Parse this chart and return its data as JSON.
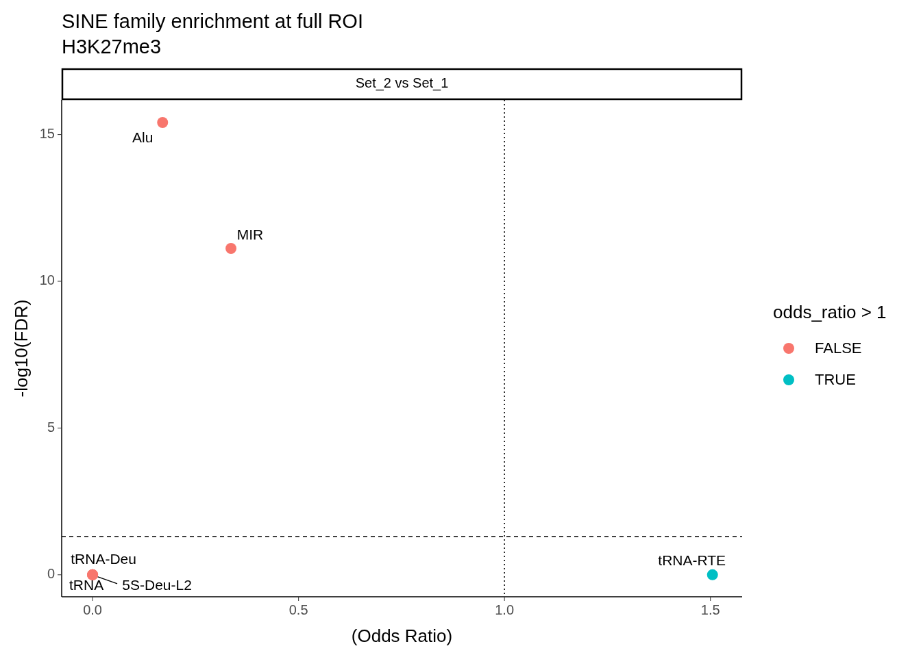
{
  "chart_data": {
    "type": "scatter",
    "title": "SINE family enrichment at full ROI",
    "subtitle": "H3K27me3",
    "xlabel": "(Odds Ratio)",
    "ylabel": "-log10(FDR)",
    "legend_title": "odds_ratio > 1",
    "series": [
      {
        "name": "FALSE",
        "color": "#f8766d",
        "x": [
          0.17,
          0.336,
          0,
          0,
          0
        ],
        "values": [
          15.41,
          11.12,
          0,
          0,
          0
        ]
      },
      {
        "name": "TRUE",
        "color": "#00bfc4",
        "x": [
          1.505
        ],
        "values": [
          0
        ]
      }
    ],
    "xlim": [
      -0.075,
      1.577
    ],
    "ylim": [
      -0.75,
      16.18
    ],
    "xticks": [
      {
        "value": 0,
        "label": "0.0"
      },
      0.5,
      {
        "value": 1,
        "label": "1.0"
      },
      1.5
    ],
    "yticks": [
      0,
      5,
      10,
      15
    ],
    "ref_lines": [
      {
        "axis": "x",
        "value": 1,
        "line_style": "dotted"
      },
      {
        "axis": "y",
        "value": 1.3,
        "line_style": "dashed"
      }
    ],
    "annotations": [
      "Set_2 vs Set_1",
      {
        "text": "Alu",
        "x": 0.17,
        "y": 15.41
      },
      {
        "text": "MIR",
        "x": 0.336,
        "y": 11.12
      },
      {
        "text": "tRNA-Deu",
        "x": 0,
        "y": 0
      },
      {
        "text": "tRNA",
        "x": 0,
        "y": 0
      },
      {
        "text": "5S-Deu-L2",
        "x": 0,
        "y": 0
      },
      {
        "text": "tRNA-RTE",
        "x": 1.505,
        "y": 0
      }
    ],
    "marker": "circle",
    "grid": false,
    "legend": "right"
  }
}
